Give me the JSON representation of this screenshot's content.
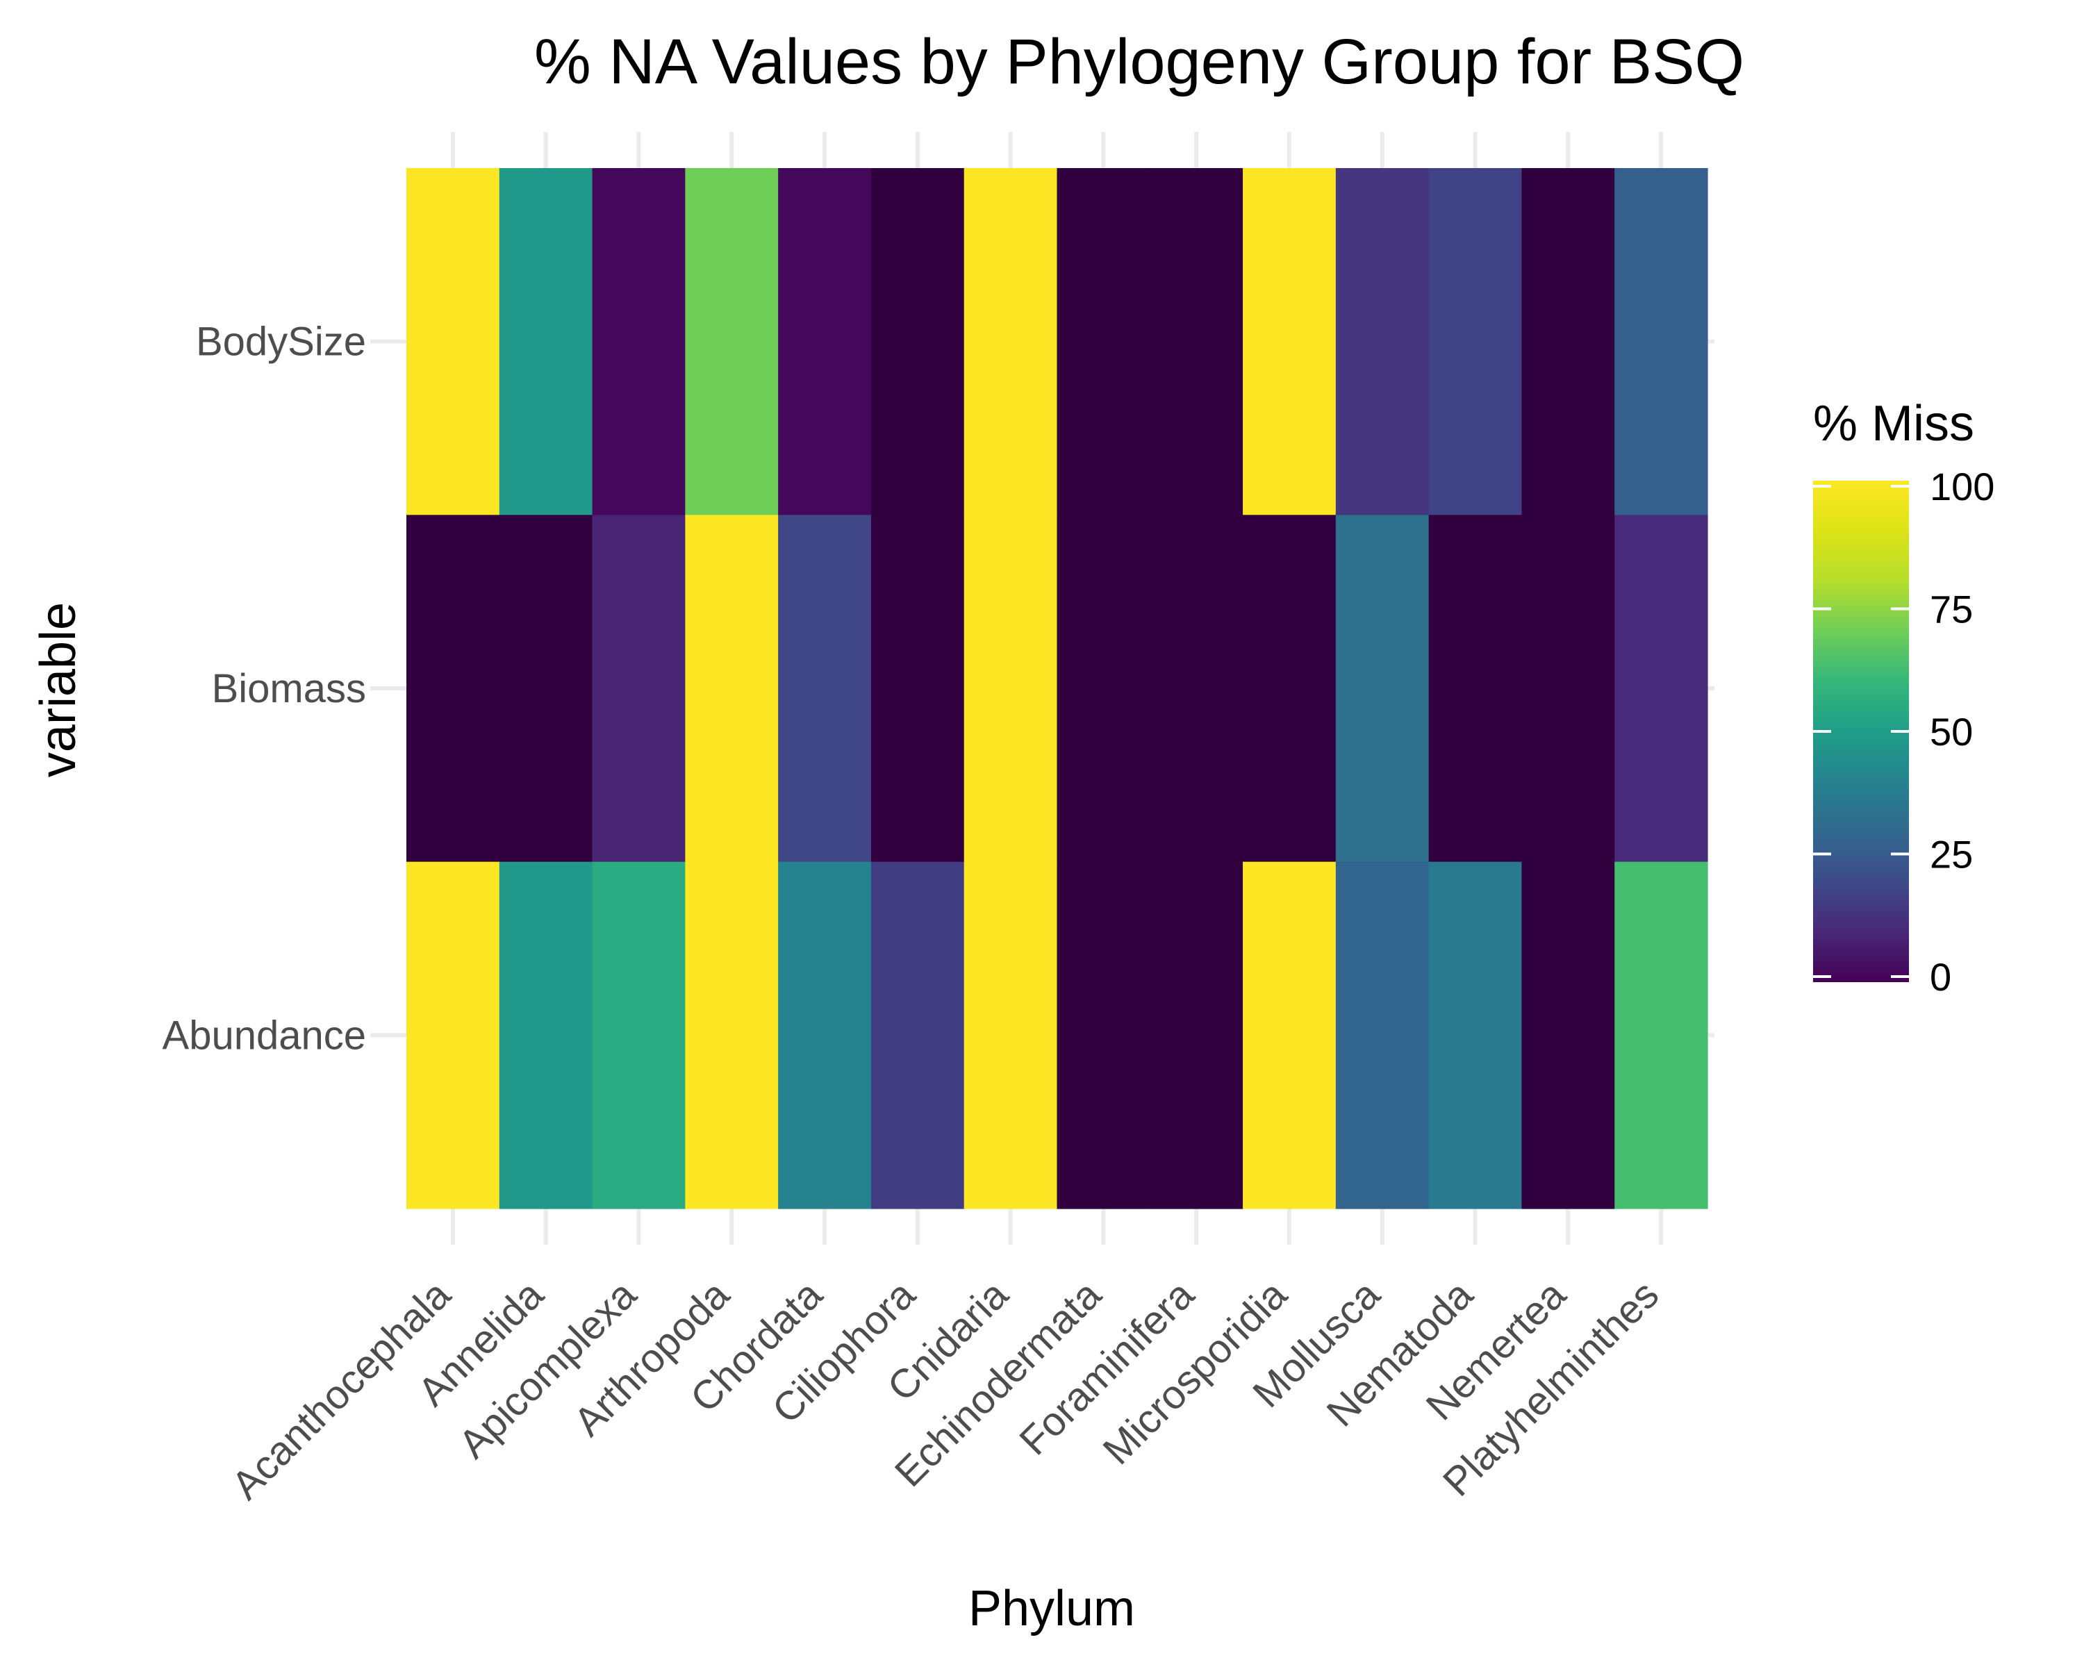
{
  "chart_data": {
    "type": "heatmap",
    "title": "% NA Values by Phylogeny Group for BSQ",
    "xlabel": "Phylum",
    "ylabel": "variable",
    "x_categories": [
      "Acanthocephala",
      "Annelida",
      "Apicomplexa",
      "Arthropoda",
      "Chordata",
      "Ciliophora",
      "Cnidaria",
      "Echinodermata",
      "Foraminifera",
      "Microsporidia",
      "Mollusca",
      "Nematoda",
      "Nemertea",
      "Platyhelminthes"
    ],
    "y_categories": [
      "BodySize",
      "Biomass",
      "Abundance"
    ],
    "values": [
      [
        100,
        48,
        2,
        70,
        2,
        0,
        100,
        0,
        0,
        100,
        14,
        18,
        0,
        27
      ],
      [
        0,
        0,
        9,
        100,
        19,
        1,
        100,
        0,
        0,
        0,
        33,
        0,
        0,
        11
      ],
      [
        100,
        48,
        55,
        100,
        40,
        16,
        100,
        0,
        0,
        100,
        29,
        37,
        0,
        63
      ]
    ],
    "colorscale": "viridis",
    "zlim": [
      0,
      100
    ],
    "legend": {
      "title": "% Miss",
      "ticks": [
        "0",
        "25",
        "50",
        "75",
        "100"
      ],
      "placement": "right"
    },
    "grid": true
  }
}
